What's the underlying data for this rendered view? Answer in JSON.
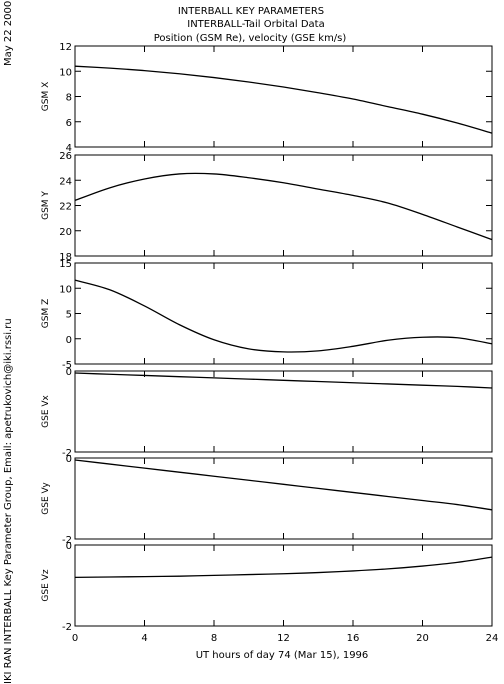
{
  "header": {
    "title_lines": [
      "INTERBALL KEY PARAMETERS",
      "INTERBALL-Tail Orbital Data",
      "Position (GSM Re), velocity (GSE km/s)"
    ]
  },
  "side_labels": {
    "date": "May 22 2000",
    "credit": "IKI RAN INTERBALL Key Parameter Group, Email: apetrukovich@iki.rssi.ru"
  },
  "chart_data": {
    "type": "line",
    "x_axis": {
      "label": "UT hours of day  74 (Mar 15), 1996",
      "range": [
        0,
        24
      ],
      "ticks": [
        0,
        4,
        8,
        12,
        16,
        20,
        24
      ]
    },
    "x": [
      0,
      2,
      4,
      6,
      8,
      10,
      12,
      14,
      16,
      18,
      20,
      22,
      24
    ],
    "panels": [
      {
        "ylabel": "GSM X",
        "ylim": [
          4,
          12
        ],
        "yticks": [
          4,
          6,
          8,
          10,
          12
        ],
        "values": [
          10.4,
          10.25,
          10.05,
          9.8,
          9.5,
          9.15,
          8.75,
          8.3,
          7.8,
          7.2,
          6.6,
          5.9,
          5.1
        ]
      },
      {
        "ylabel": "GSM Y",
        "ylim": [
          18,
          26
        ],
        "yticks": [
          18,
          20,
          22,
          24,
          26
        ],
        "values": [
          22.4,
          23.4,
          24.1,
          24.5,
          24.5,
          24.2,
          23.8,
          23.3,
          22.8,
          22.2,
          21.3,
          20.3,
          19.3
        ]
      },
      {
        "ylabel": "GSM Z",
        "ylim": [
          -5,
          15
        ],
        "yticks": [
          -5,
          0,
          5,
          10,
          15
        ],
        "values": [
          11.6,
          9.7,
          6.5,
          2.8,
          -0.2,
          -2.0,
          -2.6,
          -2.4,
          -1.5,
          -0.3,
          0.3,
          0.2,
          -1.0
        ]
      },
      {
        "ylabel": "GSE Vx",
        "ylim": [
          -2,
          0
        ],
        "yticks": [
          -2,
          0
        ],
        "values": [
          -0.05,
          -0.08,
          -0.11,
          -0.14,
          -0.17,
          -0.2,
          -0.23,
          -0.26,
          -0.29,
          -0.32,
          -0.35,
          -0.38,
          -0.42
        ]
      },
      {
        "ylabel": "GSE Vy",
        "ylim": [
          -2,
          0
        ],
        "yticks": [
          -2,
          0
        ],
        "values": [
          -0.05,
          -0.15,
          -0.25,
          -0.35,
          -0.45,
          -0.55,
          -0.65,
          -0.75,
          -0.85,
          -0.95,
          -1.05,
          -1.15,
          -1.28
        ]
      },
      {
        "ylabel": "GSE Vz",
        "ylim": [
          -2,
          0
        ],
        "yticks": [
          -2,
          0
        ],
        "values": [
          -0.8,
          -0.79,
          -0.78,
          -0.77,
          -0.75,
          -0.73,
          -0.71,
          -0.68,
          -0.64,
          -0.59,
          -0.52,
          -0.43,
          -0.3
        ]
      }
    ]
  }
}
